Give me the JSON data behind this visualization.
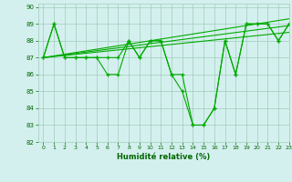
{
  "xlabel": "Humidité relative (%)",
  "xlim": [
    -0.5,
    23
  ],
  "ylim": [
    82,
    90.2
  ],
  "yticks": [
    82,
    83,
    84,
    85,
    86,
    87,
    88,
    89,
    90
  ],
  "xticks": [
    0,
    1,
    2,
    3,
    4,
    5,
    6,
    7,
    8,
    9,
    10,
    11,
    12,
    13,
    14,
    15,
    16,
    17,
    18,
    19,
    20,
    21,
    22,
    23
  ],
  "background_color": "#d4f0ee",
  "grid_color": "#a0ccbb",
  "line_color": "#00aa00",
  "marker": "+",
  "series": [
    [
      87,
      89,
      87,
      87,
      87,
      87,
      86,
      86,
      88,
      87,
      88,
      88,
      86,
      85,
      83,
      83,
      84,
      88,
      86,
      89,
      89,
      89,
      88,
      89
    ],
    [
      87,
      89,
      87,
      87,
      87,
      87,
      87,
      87,
      88,
      87,
      88,
      88,
      86,
      86,
      83,
      83,
      84,
      88,
      86,
      89,
      89,
      89,
      88,
      89
    ]
  ],
  "trend_lines": [
    {
      "x0": 0,
      "y0": 87.0,
      "x1": 23,
      "y1": 89.3
    },
    {
      "x0": 0,
      "y0": 87.0,
      "x1": 23,
      "y1": 88.9
    },
    {
      "x0": 0,
      "y0": 87.0,
      "x1": 23,
      "y1": 88.5
    }
  ]
}
